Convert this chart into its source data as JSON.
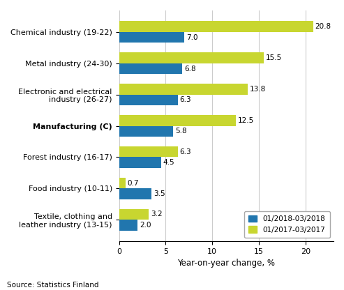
{
  "categories": [
    "Chemical industry (19-22)",
    "Metal industry (24-30)",
    "Electronic and electrical\nindustry (26-27)",
    "Manufacturing (C)",
    "Forest industry (16-17)",
    "Food industry (10-11)",
    "Textile, clothing and\nleather industry (13-15)"
  ],
  "series1_label": "01/2018-03/2018",
  "series2_label": "01/2017-03/2017",
  "series1_values": [
    7.0,
    6.8,
    6.3,
    5.8,
    4.5,
    3.5,
    2.0
  ],
  "series2_values": [
    20.8,
    15.5,
    13.8,
    12.5,
    6.3,
    0.7,
    3.2
  ],
  "series1_color": "#2176AE",
  "series2_color": "#C8D630",
  "xlabel": "Year-on-year change, %",
  "xlim": [
    0,
    23
  ],
  "xticks": [
    0,
    5,
    10,
    15,
    20
  ],
  "source_text": "Source: Statistics Finland",
  "bold_category_idx": 3,
  "background_color": "#ffffff",
  "bar_height": 0.35,
  "grid_color": "#cccccc"
}
